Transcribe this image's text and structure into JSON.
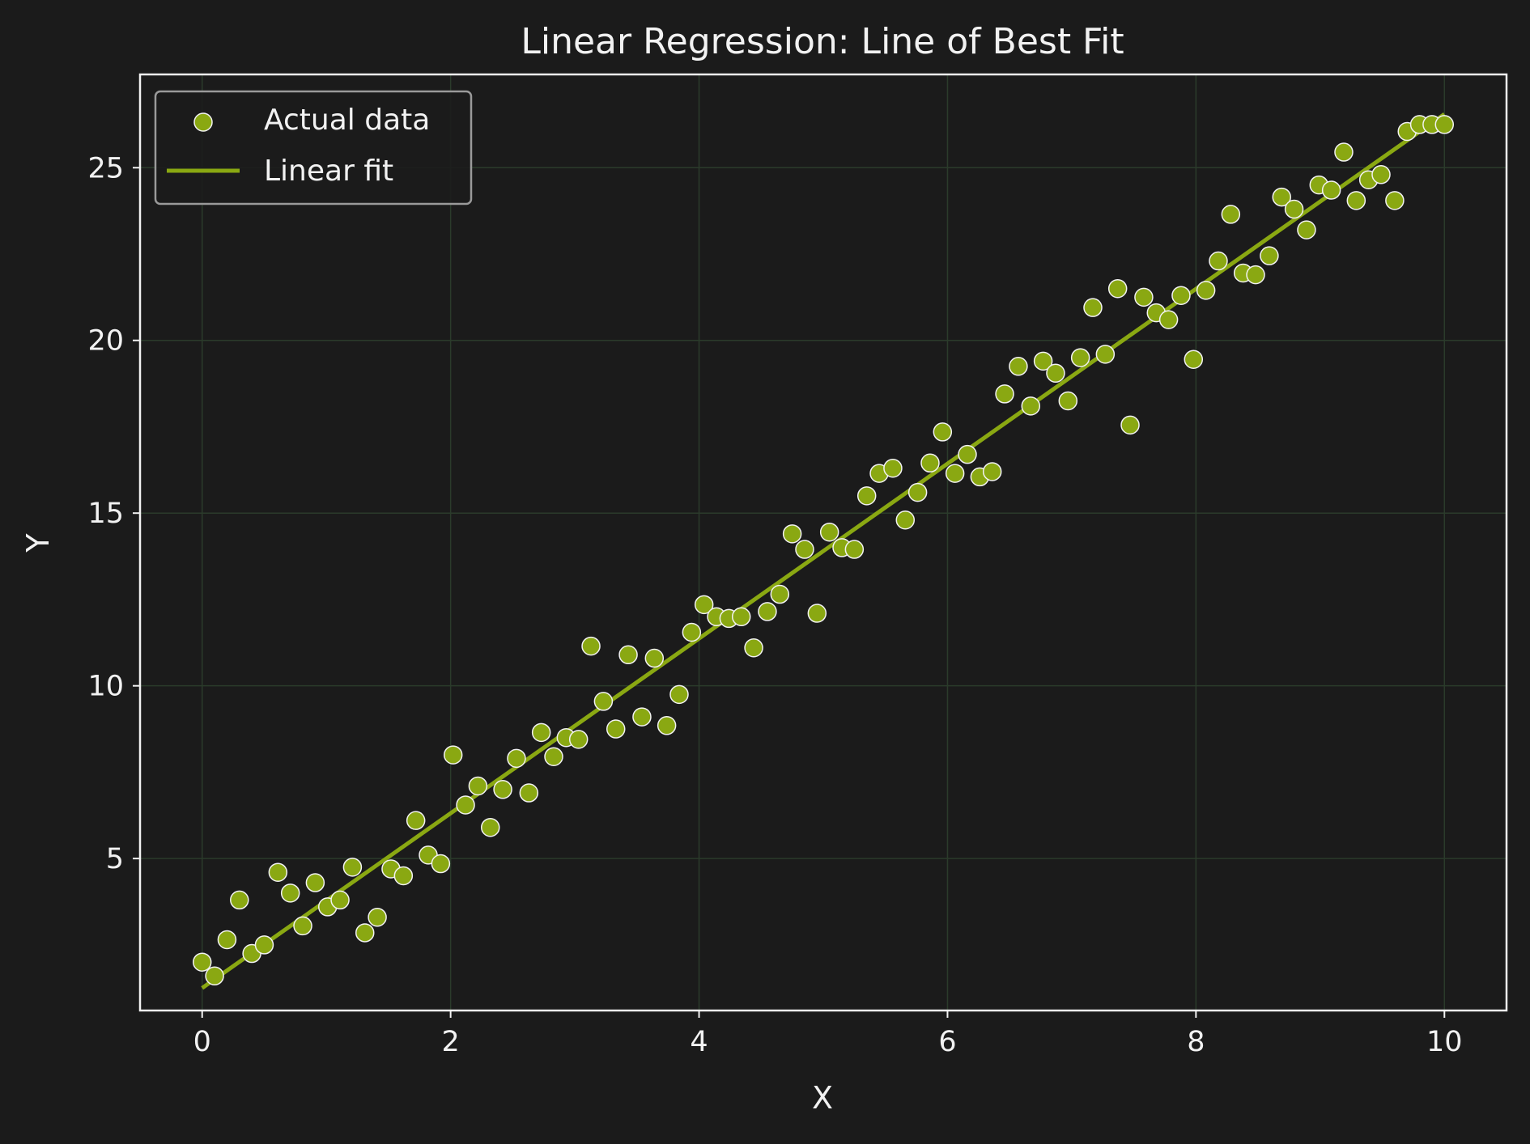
{
  "colors": {
    "background": "#1b1b1b",
    "axes_frame": "#f2f2f2",
    "grid": "#2b3b2b",
    "point_fill": "#8aa812",
    "point_edge": "#f2f2f2",
    "fit_line": "#8aa812",
    "text": "#f2f2f2",
    "legend_border": "#9a9a9a"
  },
  "chart_data": {
    "type": "scatter",
    "title": "Linear Regression: Line of Best Fit",
    "xlabel": "X",
    "ylabel": "Y",
    "xlim": [
      -0.5,
      10.5
    ],
    "ylim": [
      0.6,
      27.7
    ],
    "xticks": [
      0,
      2,
      4,
      6,
      8,
      10
    ],
    "xtick_labels": [
      "0",
      "2",
      "4",
      "6",
      "8",
      "10"
    ],
    "yticks": [
      5,
      10,
      15,
      20,
      25
    ],
    "ytick_labels": [
      "5",
      "10",
      "15",
      "20",
      "25"
    ],
    "grid": true,
    "legend_position": "upper left",
    "series": [
      {
        "name": "Actual data",
        "kind": "scatter",
        "x": [
          0.0,
          0.1,
          0.2,
          0.3,
          0.4,
          0.5,
          0.61,
          0.71,
          0.81,
          0.91,
          1.01,
          1.11,
          1.21,
          1.31,
          1.41,
          1.52,
          1.62,
          1.72,
          1.82,
          1.92,
          2.02,
          2.12,
          2.22,
          2.32,
          2.42,
          2.53,
          2.63,
          2.73,
          2.83,
          2.93,
          3.03,
          3.13,
          3.23,
          3.33,
          3.43,
          3.54,
          3.64,
          3.74,
          3.84,
          3.94,
          4.04,
          4.14,
          4.24,
          4.34,
          4.44,
          4.55,
          4.65,
          4.75,
          4.85,
          4.95,
          5.05,
          5.15,
          5.25,
          5.35,
          5.45,
          5.56,
          5.66,
          5.76,
          5.86,
          5.96,
          6.06,
          6.16,
          6.26,
          6.36,
          6.46,
          6.57,
          6.67,
          6.77,
          6.87,
          6.97,
          7.07,
          7.17,
          7.27,
          7.37,
          7.47,
          7.58,
          7.68,
          7.78,
          7.88,
          7.98,
          8.08,
          8.18,
          8.28,
          8.38,
          8.48,
          8.59,
          8.69,
          8.79,
          8.89,
          8.99,
          9.09,
          9.19,
          9.29,
          9.39,
          9.49,
          9.6,
          9.7,
          9.8,
          9.9,
          10.0
        ],
        "y": [
          2.0,
          1.6,
          2.65,
          3.8,
          2.25,
          2.5,
          4.6,
          4.0,
          3.05,
          4.3,
          3.6,
          3.8,
          4.75,
          2.85,
          3.3,
          4.7,
          4.5,
          6.1,
          5.1,
          4.85,
          8.0,
          6.55,
          7.1,
          5.9,
          7.0,
          7.9,
          6.9,
          8.65,
          7.95,
          8.5,
          8.45,
          11.15,
          9.55,
          8.75,
          10.9,
          9.1,
          10.8,
          8.85,
          9.75,
          11.55,
          12.35,
          12.0,
          11.95,
          12.0,
          11.1,
          12.15,
          12.65,
          14.4,
          13.95,
          12.1,
          14.45,
          14.0,
          13.95,
          15.5,
          16.15,
          16.3,
          14.8,
          15.6,
          16.45,
          17.35,
          16.15,
          16.7,
          16.05,
          16.2,
          18.45,
          19.25,
          18.1,
          19.4,
          19.05,
          18.25,
          19.5,
          20.95,
          19.6,
          21.5,
          17.55,
          21.25,
          20.8,
          20.6,
          21.3,
          19.45,
          21.45,
          22.3,
          23.65,
          21.95,
          21.9,
          22.45,
          24.15,
          23.8,
          23.2,
          24.5,
          24.35,
          25.45,
          24.05,
          24.65,
          24.8,
          24.05,
          26.05,
          26.25,
          26.25,
          26.25
        ]
      },
      {
        "name": "Linear fit",
        "kind": "line",
        "x": [
          0,
          10
        ],
        "y": [
          1.25,
          26.55
        ]
      }
    ]
  }
}
